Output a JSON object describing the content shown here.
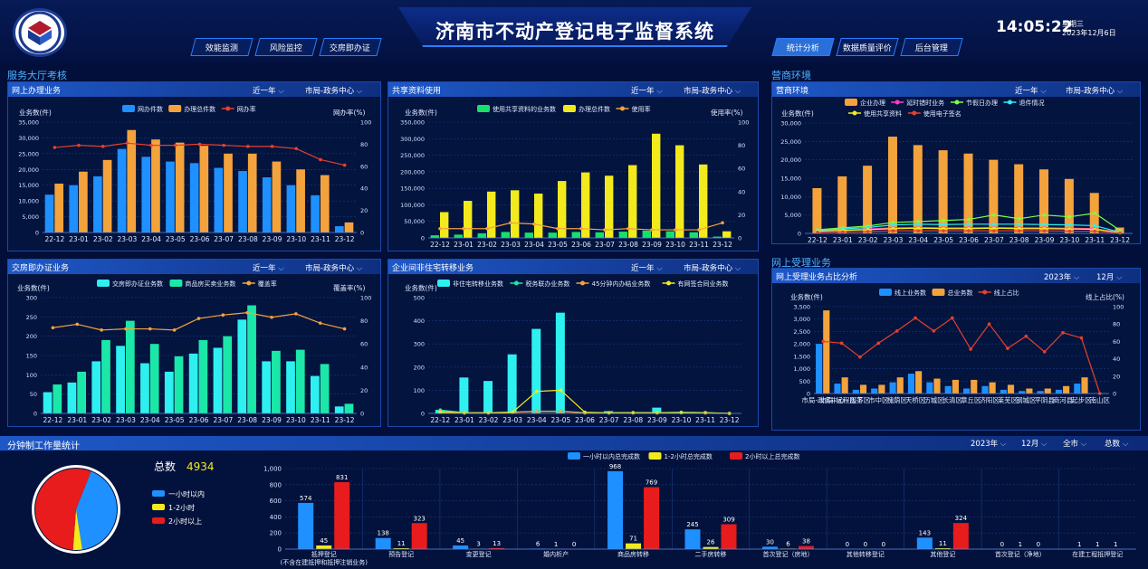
{
  "header": {
    "title": "济南市不动产登记电子监督系统",
    "time": "14:05:22",
    "weekday": "星期三",
    "date": "2023年12月6日",
    "nav_left": [
      "效能监测",
      "风险监控",
      "交房即办证"
    ],
    "nav_right": [
      "统计分析",
      "数据质量评价",
      "后台管理"
    ]
  },
  "colors": {
    "blue": "#1e90ff",
    "orange": "#f4a33c",
    "red": "#e8402a",
    "yellow": "#f2ea1c",
    "green": "#16e06a",
    "cyan": "#2ef0f0",
    "teal": "#1be8a8",
    "magenta": "#ff3cc8",
    "lime": "#7cff3c"
  },
  "sections": {
    "hall": "服务大厅考核",
    "biz": "营商环境",
    "online": "网上受理业务",
    "minute": "分钟制工作量统计"
  },
  "filters": {
    "period": "近一年",
    "dept": "市局-政务中心",
    "year": "2023年",
    "month": "12月",
    "city": "全市",
    "total_opt": "总数"
  },
  "months": [
    "22-12",
    "23-01",
    "23-02",
    "23-03",
    "23-04",
    "23-05",
    "23-06",
    "23-07",
    "23-08",
    "23-09",
    "23-10",
    "23-11",
    "23-12"
  ],
  "chart_data": [
    {
      "id": "c1",
      "type": "bar",
      "title": "网上办理业务",
      "ylabel": "业务数(件)",
      "y2label": "网办率(%)",
      "ylim": [
        0,
        35000
      ],
      "y2lim": [
        0,
        100
      ],
      "categories": [
        "22-12",
        "23-01",
        "23-02",
        "23-03",
        "23-04",
        "23-05",
        "23-06",
        "23-07",
        "23-08",
        "23-09",
        "23-10",
        "23-11",
        "23-12"
      ],
      "series": [
        {
          "name": "网办件数",
          "kind": "bar",
          "color": "#1e90ff",
          "values": [
            12000,
            15000,
            17800,
            26500,
            24000,
            22500,
            22000,
            20500,
            19500,
            17500,
            15000,
            11800,
            2000
          ]
        },
        {
          "name": "办理总件数",
          "kind": "bar",
          "color": "#f4a33c",
          "values": [
            15500,
            19300,
            23000,
            32500,
            29500,
            28500,
            27500,
            25000,
            25000,
            22500,
            20000,
            18200,
            3200
          ]
        },
        {
          "name": "网办率",
          "kind": "line",
          "axis": "y2",
          "color": "#e8402a",
          "values": [
            77,
            79,
            78,
            81,
            79,
            79,
            80,
            79,
            78,
            78,
            76,
            66,
            61
          ]
        }
      ]
    },
    {
      "id": "c2",
      "type": "bar",
      "title": "共享资料使用",
      "ylabel": "业务数(件)",
      "y2label": "使用率(%)",
      "ylim": [
        0,
        350000
      ],
      "y2lim": [
        0,
        100
      ],
      "categories": [
        "22-12",
        "23-01",
        "23-02",
        "23-03",
        "23-04",
        "23-05",
        "23-06",
        "23-07",
        "23-08",
        "23-09",
        "23-10",
        "23-11",
        "23-12"
      ],
      "series": [
        {
          "name": "使用共享资料的业务数",
          "kind": "bar",
          "color": "#16e06a",
          "values": [
            8000,
            10000,
            14000,
            18000,
            16000,
            16000,
            18000,
            17000,
            19000,
            22000,
            20000,
            17000,
            4000
          ]
        },
        {
          "name": "办理总件数",
          "kind": "bar",
          "color": "#f2ea1c",
          "values": [
            78000,
            112000,
            140000,
            144000,
            134000,
            172000,
            198000,
            188000,
            220000,
            315000,
            280000,
            222000,
            20000
          ]
        },
        {
          "name": "使用率",
          "kind": "line",
          "axis": "y2",
          "color": "#f4a33c",
          "values": [
            8,
            8,
            8,
            13,
            12,
            8,
            8,
            7,
            8,
            7,
            7,
            7,
            13
          ]
        }
      ]
    },
    {
      "id": "c3",
      "type": "bar",
      "title": "营商环境",
      "ylabel": "业务数(件)",
      "ylim": [
        0,
        30000
      ],
      "categories": [
        "22-12",
        "23-01",
        "23-02",
        "23-03",
        "23-04",
        "23-05",
        "23-06",
        "23-07",
        "23-08",
        "23-09",
        "23-10",
        "23-11",
        "23-12"
      ],
      "series": [
        {
          "name": "企业办理",
          "kind": "bar",
          "color": "#f4a33c",
          "values": [
            12300,
            15500,
            18400,
            26300,
            24000,
            22600,
            21700,
            20000,
            18800,
            17400,
            14800,
            11000,
            1600
          ]
        },
        {
          "name": "延时错时业务",
          "kind": "line",
          "color": "#ff3cc8",
          "values": [
            800,
            900,
            1200,
            1500,
            1600,
            1500,
            1500,
            1600,
            1500,
            1500,
            1400,
            1300,
            200
          ]
        },
        {
          "name": "节假日办理",
          "kind": "line",
          "color": "#7cff3c",
          "values": [
            1000,
            1500,
            2000,
            3000,
            3200,
            3500,
            3800,
            5000,
            4000,
            5000,
            4500,
            5500,
            800
          ]
        },
        {
          "name": "退件情况",
          "kind": "line",
          "color": "#2ef0f0",
          "values": [
            900,
            1200,
            1600,
            2300,
            2500,
            2400,
            2500,
            2500,
            2500,
            2400,
            2300,
            2100,
            300
          ]
        },
        {
          "name": "使用共享资料",
          "kind": "line",
          "color": "#f2ea1c",
          "values": [
            600,
            800,
            1000,
            1300,
            1400,
            1300,
            1300,
            1400,
            1300,
            1300,
            1200,
            1100,
            200
          ]
        },
        {
          "name": "使用电子签名",
          "kind": "line",
          "color": "#e8402a",
          "values": [
            300,
            400,
            500,
            700,
            700,
            700,
            700,
            700,
            700,
            700,
            600,
            600,
            100
          ]
        }
      ]
    },
    {
      "id": "c4",
      "type": "bar",
      "title": "交房即办证业务",
      "ylabel": "业务数(件)",
      "y2label": "覆盖率(%)",
      "ylim": [
        0,
        300
      ],
      "y2lim": [
        0,
        100
      ],
      "categories": [
        "22-12",
        "23-01",
        "23-02",
        "23-03",
        "23-04",
        "23-05",
        "23-06",
        "23-07",
        "23-08",
        "23-09",
        "23-10",
        "23-11",
        "23-12"
      ],
      "series": [
        {
          "name": "交房即办证业务数",
          "kind": "bar",
          "color": "#2ef0f0",
          "values": [
            55,
            80,
            135,
            175,
            130,
            108,
            155,
            170,
            243,
            135,
            135,
            97,
            18
          ]
        },
        {
          "name": "商品房买卖业务数",
          "kind": "bar",
          "color": "#1be8a8",
          "values": [
            75,
            108,
            190,
            240,
            180,
            148,
            190,
            200,
            280,
            162,
            165,
            128,
            25
          ]
        },
        {
          "name": "覆盖率",
          "kind": "line",
          "axis": "y2",
          "color": "#f4a33c",
          "values": [
            74,
            77,
            72,
            73,
            73,
            72,
            82,
            85,
            87,
            83,
            86,
            78,
            73
          ]
        }
      ]
    },
    {
      "id": "c5",
      "type": "bar",
      "title": "企业间非住宅转移业务",
      "ylabel": "业务数(件)",
      "ylim": [
        0,
        500
      ],
      "categories": [
        "22-12",
        "23-01",
        "23-02",
        "23-03",
        "23-04",
        "23-05",
        "23-06",
        "23-07",
        "23-08",
        "23-09",
        "23-10",
        "23-11",
        "23-12"
      ],
      "series": [
        {
          "name": "非住宅转移业务数",
          "kind": "bar",
          "color": "#2ef0f0",
          "values": [
            15,
            155,
            140,
            255,
            365,
            435,
            3,
            10,
            2,
            25,
            3,
            3,
            0
          ]
        },
        {
          "name": "税务联办业务数",
          "kind": "line",
          "color": "#1be8a8",
          "values": [
            15,
            3,
            3,
            5,
            10,
            10,
            3,
            3,
            3,
            3,
            5,
            3,
            0
          ]
        },
        {
          "name": "45分钟内办结业务数",
          "kind": "line",
          "color": "#f4a33c",
          "values": [
            10,
            2,
            3,
            5,
            8,
            8,
            2,
            3,
            2,
            3,
            3,
            2,
            0
          ]
        },
        {
          "name": "有网签合同业务数",
          "kind": "line",
          "color": "#f2ea1c",
          "values": [
            5,
            2,
            2,
            5,
            95,
            100,
            5,
            2,
            3,
            2,
            3,
            3,
            0
          ]
        }
      ]
    },
    {
      "id": "c6",
      "type": "bar",
      "title": "网上受理业务占比分析",
      "ylabel": "业务数(件)",
      "y2label": "线上占比(%)",
      "ylim": [
        0,
        3500
      ],
      "y2lim": [
        0,
        100
      ],
      "categories": [
        "市局-政务中心",
        "市局-远程服务",
        "历下区",
        "市中区",
        "槐荫区",
        "天桥区",
        "历城区",
        "长清区",
        "章丘区",
        "济阳区",
        "莱芜区",
        "钢城区",
        "平阴县",
        "商河县",
        "起步区",
        "南山区"
      ],
      "series": [
        {
          "name": "线上业务数",
          "kind": "bar",
          "color": "#1e90ff",
          "values": [
            2000,
            400,
            150,
            200,
            450,
            800,
            450,
            300,
            200,
            300,
            150,
            100,
            100,
            150,
            400,
            0
          ]
        },
        {
          "name": "总业务数",
          "kind": "bar",
          "color": "#f4a33c",
          "values": [
            3350,
            650,
            350,
            350,
            650,
            900,
            600,
            550,
            550,
            450,
            350,
            200,
            200,
            300,
            650,
            0
          ]
        },
        {
          "name": "线上占比",
          "kind": "line",
          "axis": "y2",
          "color": "#e8402a",
          "values": [
            60,
            58,
            42,
            58,
            72,
            87,
            72,
            87,
            51,
            80,
            52,
            66,
            48,
            70,
            64,
            0
          ]
        }
      ]
    },
    {
      "id": "c7",
      "type": "pie",
      "title": "总数",
      "total": "4934",
      "values": [
        2050,
        180,
        2704
      ],
      "labels": [
        "一小时以内",
        "1-2小时",
        "2小时以上"
      ],
      "colors": [
        "#1e90ff",
        "#f2ea1c",
        "#e81c1c"
      ]
    },
    {
      "id": "c8",
      "type": "bar",
      "ylim": [
        0,
        1000
      ],
      "categories": [
        "抵押登记\n(不含在建抵押和抵押注销业务)",
        "预告登记",
        "变更登记",
        "婚内析产",
        "商品房转移",
        "二手房转移",
        "首次登记（房地）",
        "其他转移登记",
        "其他登记",
        "首次登记（净地）",
        "在建工程抵押登记"
      ],
      "series": [
        {
          "name": "一小时以内总完成数",
          "color": "#1e90ff",
          "values": [
            574,
            138,
            45,
            6,
            968,
            245,
            30,
            0,
            143,
            0,
            1
          ]
        },
        {
          "name": "1-2小时总完成数",
          "color": "#f2ea1c",
          "values": [
            45,
            11,
            3,
            1,
            71,
            26,
            6,
            0,
            11,
            1,
            1
          ]
        },
        {
          "name": "2小时以上总完成数",
          "color": "#e81c1c",
          "values": [
            831,
            323,
            13,
            0,
            769,
            309,
            38,
            0,
            324,
            0,
            1
          ]
        }
      ]
    }
  ]
}
